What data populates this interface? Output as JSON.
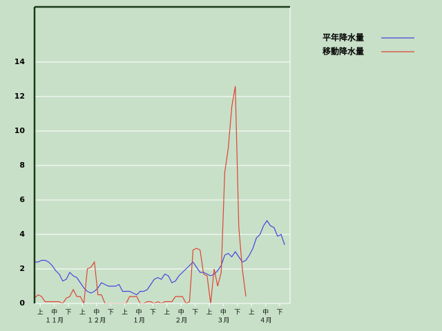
{
  "chart_data": {
    "type": "line",
    "categories": [
      null,
      null,
      "上",
      null,
      null,
      null,
      "中",
      null,
      null,
      null,
      "下",
      null,
      null,
      null,
      "上",
      null,
      null,
      null,
      "中",
      null,
      null,
      null,
      "下",
      null,
      null,
      null,
      "上",
      null,
      null,
      null,
      "中",
      null,
      null,
      null,
      "下",
      null,
      null,
      null,
      "上",
      null,
      null,
      null,
      "中",
      null,
      null,
      null,
      "下",
      null,
      null,
      null,
      "上",
      null,
      null,
      null,
      "中",
      null,
      null,
      null,
      "下",
      null,
      null,
      null,
      "上",
      null,
      null,
      null,
      "中",
      null,
      null,
      null,
      "下",
      null
    ],
    "months": [
      "１１月",
      "１２月",
      "１月",
      "２月",
      "３月",
      "４月"
    ],
    "series": [
      {
        "name": "平年降水量",
        "color": "#4444dd",
        "values": [
          2.4,
          2.4,
          2.5,
          2.5,
          2.4,
          2.2,
          1.9,
          1.7,
          1.3,
          1.4,
          1.8,
          1.6,
          1.5,
          1.2,
          0.9,
          0.7,
          0.6,
          0.7,
          0.9,
          1.2,
          1.1,
          1.0,
          1.0,
          1.0,
          1.1,
          0.7,
          0.7,
          0.7,
          0.6,
          0.5,
          0.7,
          0.7,
          0.8,
          1.1,
          1.4,
          1.5,
          1.4,
          1.7,
          1.6,
          1.2,
          1.3,
          1.6,
          1.8,
          2.0,
          2.2,
          2.4,
          2.1,
          1.8,
          1.8,
          1.7,
          1.6,
          1.7,
          1.9,
          2.2,
          2.8,
          2.9,
          2.7,
          3.0,
          2.7,
          2.4,
          2.5,
          2.8,
          3.2,
          3.8,
          4.0,
          4.5,
          4.8,
          4.5,
          4.4,
          3.9,
          4.0,
          3.4
        ]
      },
      {
        "name": "移動降水量",
        "color": "#dd4433",
        "values": [
          0.3,
          0.5,
          0.4,
          0.1,
          0.1,
          0.1,
          0.1,
          0.1,
          0.0,
          0.3,
          0.4,
          0.8,
          0.4,
          0.4,
          0.0,
          2.0,
          2.1,
          2.4,
          0.5,
          0.5,
          0.0,
          0.0,
          0.0,
          0.0,
          0.0,
          0.0,
          0.0,
          0.4,
          0.4,
          0.4,
          0.0,
          0.0,
          0.1,
          0.1,
          0.0,
          0.1,
          0.0,
          0.1,
          0.1,
          0.1,
          0.4,
          0.4,
          0.4,
          0.0,
          0.1,
          3.1,
          3.2,
          3.1,
          1.7,
          1.6,
          0.0,
          2.0,
          1.0,
          1.8,
          7.6,
          9.0,
          11.4,
          12.6,
          4.4,
          2.0,
          0.4,
          null,
          null,
          null,
          null,
          null,
          null,
          null,
          null,
          null,
          null,
          null
        ]
      }
    ],
    "ylim": [
      0,
      17.2
    ],
    "yticks": [
      0,
      2,
      4,
      6,
      8,
      10,
      12,
      14
    ],
    "grid": true
  }
}
